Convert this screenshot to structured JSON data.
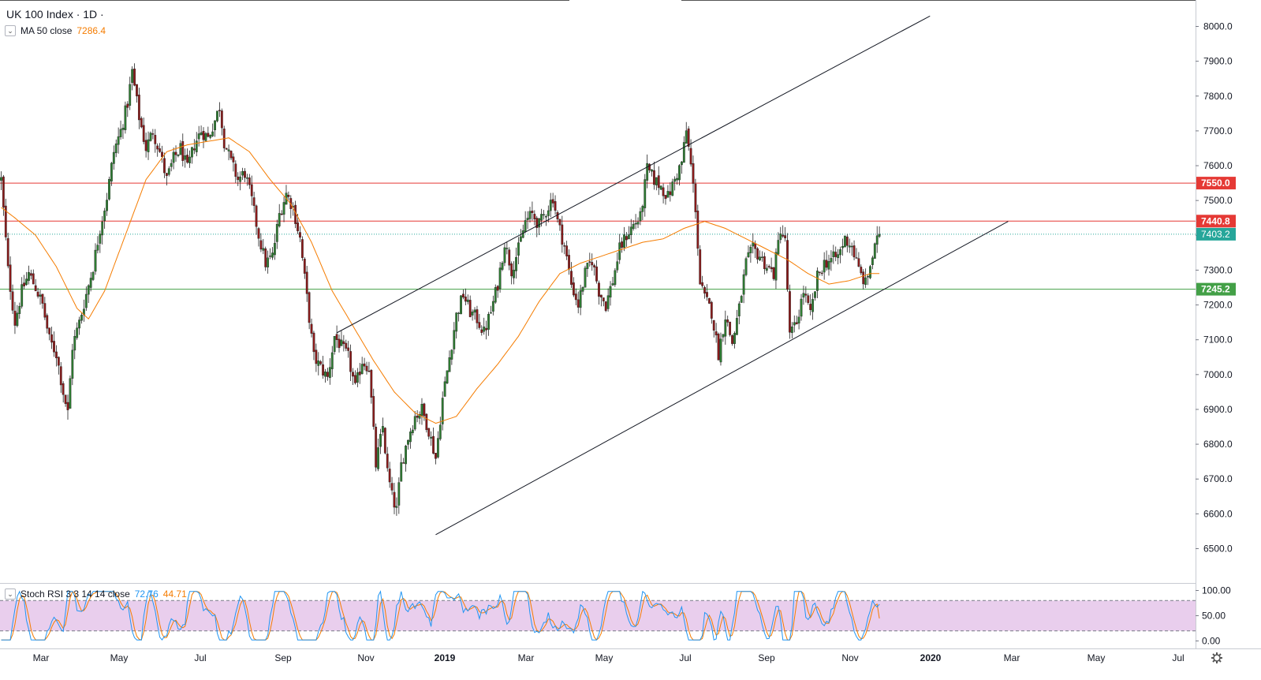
{
  "header": {
    "title": "UK 100 Index · 1D ·",
    "ma_label": "MA 50 close",
    "ma_value": "7286.4",
    "stoch_label": "Stoch RSI 3 3 14 14 close",
    "stoch_k": "72.76",
    "stoch_d": "44.71"
  },
  "colors": {
    "up": "#26a69a",
    "up_body": "#2e7d32",
    "down": "#8b1a1a",
    "ma": "#f57c00",
    "resistance": "#e53935",
    "support": "#43a047",
    "stoch_k": "#2196f3",
    "stoch_d": "#f57c00",
    "stoch_band": "#e1bee7"
  },
  "chart_data": {
    "type": "candlestick",
    "title": "UK 100 Index · 1D",
    "ylim": [
      6450,
      8050
    ],
    "y_ticks": [
      8000,
      7900,
      7800,
      7700,
      7600,
      7500,
      7400,
      7300,
      7200,
      7100,
      7000,
      6900,
      6800,
      6700,
      6600,
      6500
    ],
    "x_ticks": [
      "Mar",
      "May",
      "Jul",
      "Sep",
      "Nov",
      "2019",
      "Mar",
      "May",
      "Jul",
      "Sep",
      "Nov",
      "2020",
      "Mar",
      "May",
      "Jul"
    ],
    "price_path": [
      [
        0,
        7560
      ],
      [
        3,
        7300
      ],
      [
        6,
        7150
      ],
      [
        9,
        7240
      ],
      [
        12,
        7290
      ],
      [
        15,
        7250
      ],
      [
        18,
        7200
      ],
      [
        21,
        7100
      ],
      [
        24,
        7060
      ],
      [
        27,
        6950
      ],
      [
        29,
        6890
      ],
      [
        31,
        7080
      ],
      [
        34,
        7150
      ],
      [
        37,
        7230
      ],
      [
        40,
        7310
      ],
      [
        43,
        7420
      ],
      [
        46,
        7510
      ],
      [
        49,
        7640
      ],
      [
        52,
        7700
      ],
      [
        55,
        7780
      ],
      [
        57,
        7870
      ],
      [
        60,
        7740
      ],
      [
        63,
        7650
      ],
      [
        66,
        7700
      ],
      [
        69,
        7640
      ],
      [
        72,
        7560
      ],
      [
        75,
        7620
      ],
      [
        78,
        7650
      ],
      [
        81,
        7590
      ],
      [
        84,
        7660
      ],
      [
        87,
        7700
      ],
      [
        90,
        7680
      ],
      [
        93,
        7730
      ],
      [
        95,
        7770
      ],
      [
        97,
        7670
      ],
      [
        100,
        7610
      ],
      [
        103,
        7560
      ],
      [
        106,
        7580
      ],
      [
        109,
        7500
      ],
      [
        112,
        7400
      ],
      [
        115,
        7320
      ],
      [
        118,
        7340
      ],
      [
        121,
        7460
      ],
      [
        124,
        7520
      ],
      [
        127,
        7480
      ],
      [
        130,
        7390
      ],
      [
        133,
        7220
      ],
      [
        136,
        7050
      ],
      [
        139,
        7020
      ],
      [
        142,
        6990
      ],
      [
        145,
        7110
      ],
      [
        148,
        7080
      ],
      [
        151,
        7050
      ],
      [
        154,
        6960
      ],
      [
        157,
        7040
      ],
      [
        160,
        7020
      ],
      [
        163,
        6740
      ],
      [
        166,
        6850
      ],
      [
        168,
        6720
      ],
      [
        170,
        6650
      ],
      [
        172,
        6610
      ],
      [
        174,
        6740
      ],
      [
        177,
        6820
      ],
      [
        180,
        6880
      ],
      [
        183,
        6900
      ],
      [
        186,
        6840
      ],
      [
        189,
        6760
      ],
      [
        192,
        6930
      ],
      [
        195,
        7050
      ],
      [
        198,
        7170
      ],
      [
        201,
        7230
      ],
      [
        204,
        7180
      ],
      [
        207,
        7160
      ],
      [
        210,
        7120
      ],
      [
        213,
        7180
      ],
      [
        216,
        7260
      ],
      [
        219,
        7380
      ],
      [
        222,
        7300
      ],
      [
        225,
        7360
      ],
      [
        228,
        7440
      ],
      [
        231,
        7460
      ],
      [
        234,
        7430
      ],
      [
        237,
        7470
      ],
      [
        240,
        7510
      ],
      [
        242,
        7440
      ],
      [
        245,
        7370
      ],
      [
        248,
        7260
      ],
      [
        251,
        7200
      ],
      [
        254,
        7290
      ],
      [
        257,
        7330
      ],
      [
        260,
        7240
      ],
      [
        263,
        7200
      ],
      [
        266,
        7270
      ],
      [
        269,
        7360
      ],
      [
        272,
        7400
      ],
      [
        275,
        7430
      ],
      [
        278,
        7450
      ],
      [
        281,
        7590
      ],
      [
        284,
        7560
      ],
      [
        287,
        7540
      ],
      [
        290,
        7510
      ],
      [
        293,
        7560
      ],
      [
        296,
        7610
      ],
      [
        298,
        7700
      ],
      [
        300,
        7600
      ],
      [
        302,
        7480
      ],
      [
        304,
        7260
      ],
      [
        306,
        7220
      ],
      [
        309,
        7180
      ],
      [
        312,
        7060
      ],
      [
        315,
        7170
      ],
      [
        318,
        7090
      ],
      [
        321,
        7190
      ],
      [
        324,
        7320
      ],
      [
        327,
        7360
      ],
      [
        330,
        7340
      ],
      [
        333,
        7310
      ],
      [
        336,
        7290
      ],
      [
        339,
        7420
      ],
      [
        341,
        7380
      ],
      [
        343,
        7110
      ],
      [
        346,
        7150
      ],
      [
        349,
        7240
      ],
      [
        352,
        7170
      ],
      [
        355,
        7280
      ],
      [
        358,
        7320
      ],
      [
        361,
        7330
      ],
      [
        364,
        7340
      ],
      [
        367,
        7390
      ],
      [
        370,
        7370
      ],
      [
        373,
        7300
      ],
      [
        376,
        7260
      ],
      [
        379,
        7340
      ],
      [
        382,
        7403
      ]
    ],
    "ma50_path": [
      [
        0,
        7480
      ],
      [
        6,
        7450
      ],
      [
        15,
        7400
      ],
      [
        24,
        7310
      ],
      [
        33,
        7190
      ],
      [
        38,
        7160
      ],
      [
        45,
        7240
      ],
      [
        54,
        7400
      ],
      [
        63,
        7560
      ],
      [
        72,
        7640
      ],
      [
        81,
        7660
      ],
      [
        90,
        7670
      ],
      [
        99,
        7680
      ],
      [
        108,
        7640
      ],
      [
        117,
        7560
      ],
      [
        126,
        7490
      ],
      [
        135,
        7380
      ],
      [
        144,
        7240
      ],
      [
        153,
        7140
      ],
      [
        162,
        7040
      ],
      [
        171,
        6950
      ],
      [
        180,
        6890
      ],
      [
        189,
        6860
      ],
      [
        198,
        6880
      ],
      [
        207,
        6960
      ],
      [
        216,
        7030
      ],
      [
        225,
        7110
      ],
      [
        234,
        7210
      ],
      [
        243,
        7290
      ],
      [
        252,
        7320
      ],
      [
        261,
        7340
      ],
      [
        270,
        7360
      ],
      [
        279,
        7380
      ],
      [
        288,
        7390
      ],
      [
        297,
        7420
      ],
      [
        306,
        7440
      ],
      [
        315,
        7420
      ],
      [
        324,
        7390
      ],
      [
        333,
        7360
      ],
      [
        342,
        7330
      ],
      [
        351,
        7290
      ],
      [
        360,
        7260
      ],
      [
        369,
        7270
      ],
      [
        378,
        7290
      ],
      [
        382,
        7290
      ]
    ],
    "max_index": 520,
    "horizontal_levels": [
      {
        "value": 7550.0,
        "label": "7550.0",
        "color": "#e53935"
      },
      {
        "value": 7440.8,
        "label": "7440.8",
        "color": "#e53935"
      },
      {
        "value": 7245.2,
        "label": "7245.2",
        "color": "#43a047"
      }
    ],
    "last_price": {
      "value": 7403.2,
      "label": "7403.2",
      "color": "#26a69a"
    },
    "trendlines": [
      {
        "from": [
          146,
          7120
        ],
        "to": [
          404,
          8030
        ]
      },
      {
        "from": [
          189,
          6540
        ],
        "to": [
          438,
          7440
        ]
      }
    ],
    "stoch_rsi": {
      "ylim": [
        0,
        100
      ],
      "y_ticks": [
        "100.00",
        "50.00",
        "0.00"
      ],
      "upper_band": 80,
      "lower_band": 20,
      "k_last": 72.76,
      "d_last": 44.71
    }
  }
}
